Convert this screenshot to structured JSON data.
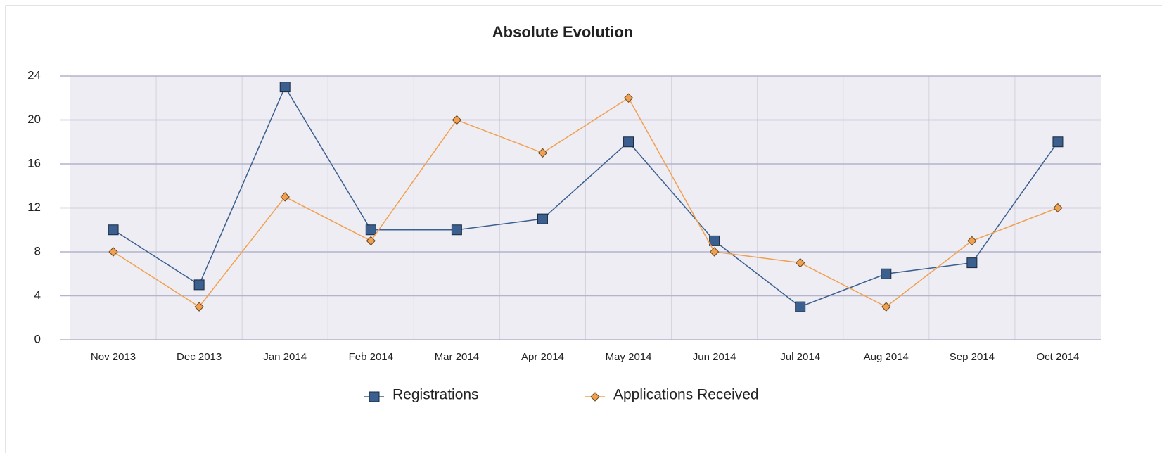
{
  "chart_data": {
    "type": "line",
    "title": "Absolute Evolution",
    "categories": [
      "Nov 2013",
      "Dec 2013",
      "Jan 2014",
      "Feb 2014",
      "Mar 2014",
      "Apr 2014",
      "May 2014",
      "Jun 2014",
      "Jul 2014",
      "Aug 2014",
      "Sep 2014",
      "Oct 2014"
    ],
    "series": [
      {
        "name": "Registrations",
        "color": "#3b5f8e",
        "values": [
          10,
          5,
          23,
          10,
          10,
          11,
          18,
          9,
          3,
          6,
          7,
          18
        ]
      },
      {
        "name": "Applications Received",
        "color": "#f0a050",
        "values": [
          8,
          3,
          13,
          9,
          20,
          17,
          22,
          8,
          7,
          3,
          9,
          12
        ]
      }
    ],
    "ylim": [
      0,
      24
    ],
    "yticks": [
      0,
      4,
      8,
      12,
      16,
      20,
      24
    ],
    "grid": true,
    "legend": "bottom"
  }
}
